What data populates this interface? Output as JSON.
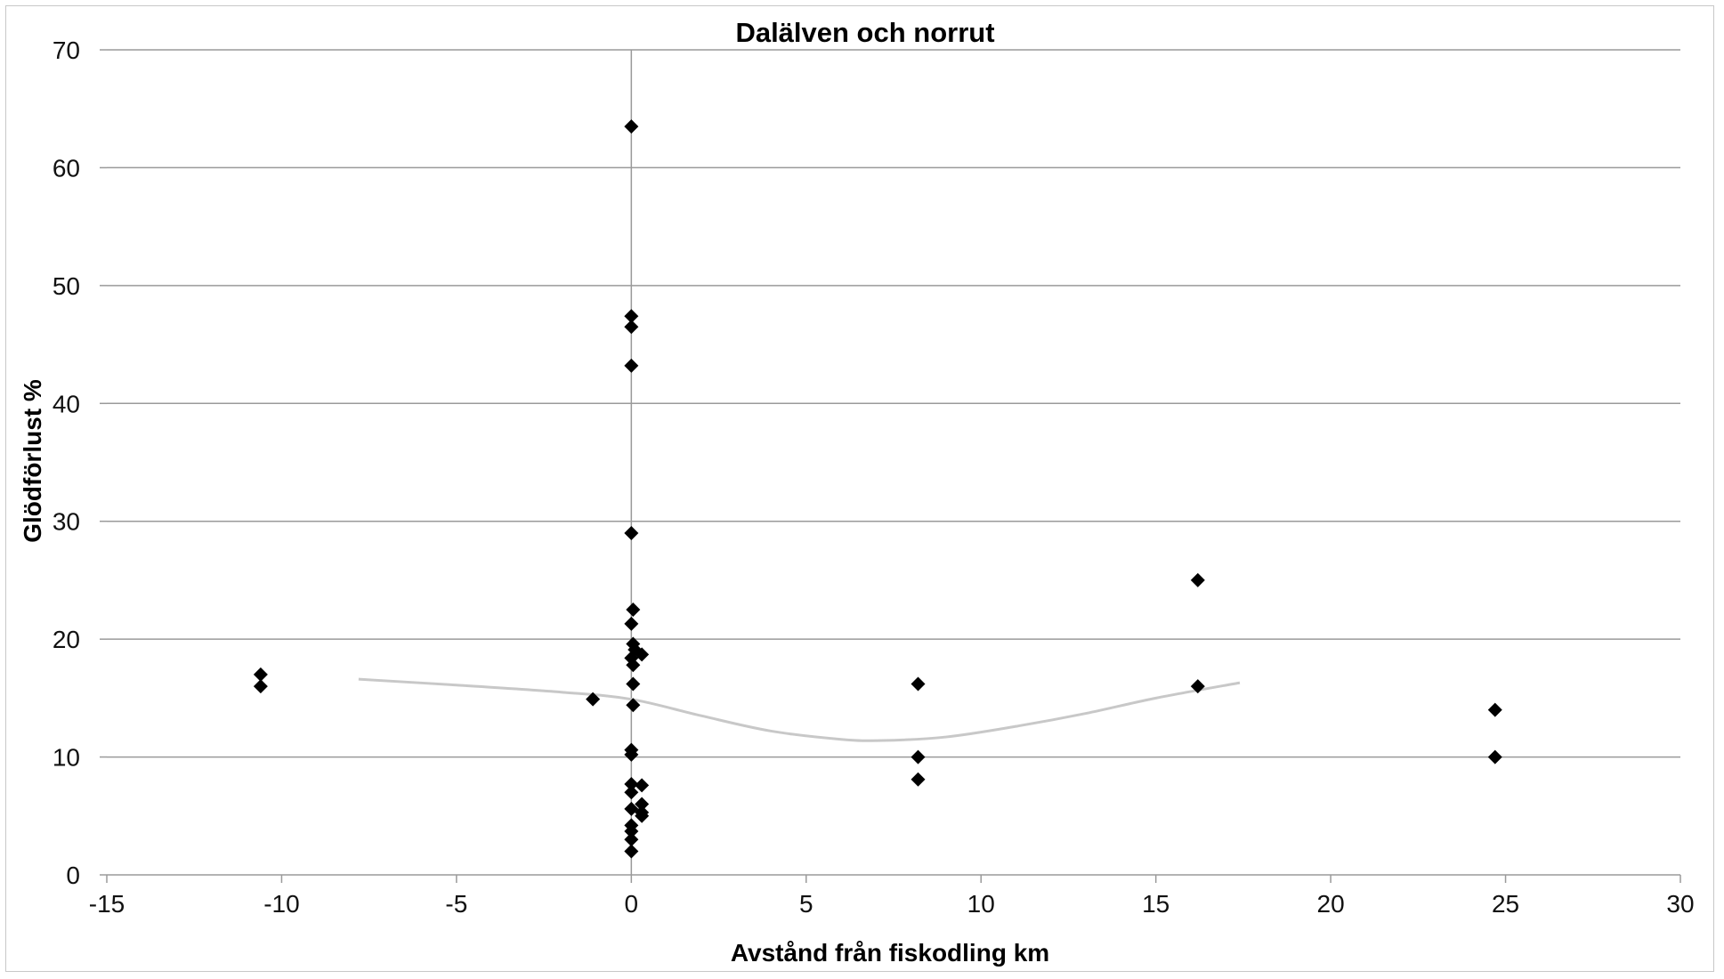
{
  "chart_data": {
    "type": "scatter",
    "title": "Dalälven och norrut",
    "xlabel": "Avstånd från fiskodling km",
    "ylabel": "Glödförlust %",
    "xlim": [
      -15,
      30
    ],
    "ylim": [
      0,
      70
    ],
    "xticks": [
      -15,
      -10,
      -5,
      0,
      5,
      10,
      15,
      20,
      25,
      30
    ],
    "yticks": [
      0,
      10,
      20,
      30,
      40,
      50,
      60,
      70
    ],
    "grid": "horizontal",
    "marker": "diamond",
    "colors": {
      "points": "#000000",
      "trend": "#c8c8c8",
      "grid": "#9a9a9a",
      "axis": "#9a9a9a"
    },
    "points": [
      {
        "x": -10.6,
        "y": 17.0
      },
      {
        "x": -10.6,
        "y": 16.0
      },
      {
        "x": -1.1,
        "y": 14.9
      },
      {
        "x": 0,
        "y": 63.5
      },
      {
        "x": 0,
        "y": 47.4
      },
      {
        "x": 0,
        "y": 46.5
      },
      {
        "x": 0,
        "y": 43.2
      },
      {
        "x": 0,
        "y": 29.0
      },
      {
        "x": 0.05,
        "y": 22.5
      },
      {
        "x": 0,
        "y": 21.3
      },
      {
        "x": 0.05,
        "y": 19.6
      },
      {
        "x": 0.1,
        "y": 19.1
      },
      {
        "x": 0,
        "y": 18.4
      },
      {
        "x": 0.3,
        "y": 18.7
      },
      {
        "x": 0.05,
        "y": 17.8
      },
      {
        "x": 0.05,
        "y": 16.2
      },
      {
        "x": 0.05,
        "y": 14.4
      },
      {
        "x": 0,
        "y": 10.6
      },
      {
        "x": 0,
        "y": 10.2
      },
      {
        "x": 0,
        "y": 7.7
      },
      {
        "x": 0.3,
        "y": 7.6
      },
      {
        "x": 0,
        "y": 7.0
      },
      {
        "x": 0.3,
        "y": 6.0
      },
      {
        "x": 0,
        "y": 5.6
      },
      {
        "x": 0.3,
        "y": 5.3
      },
      {
        "x": 0.3,
        "y": 5.0
      },
      {
        "x": 0,
        "y": 4.2
      },
      {
        "x": 0,
        "y": 3.7
      },
      {
        "x": 0,
        "y": 3.0
      },
      {
        "x": 0,
        "y": 2.0
      },
      {
        "x": 8.2,
        "y": 16.2
      },
      {
        "x": 8.2,
        "y": 10.0
      },
      {
        "x": 8.2,
        "y": 8.1
      },
      {
        "x": 16.2,
        "y": 25.0
      },
      {
        "x": 16.2,
        "y": 16.0
      },
      {
        "x": 24.7,
        "y": 14.0
      },
      {
        "x": 24.7,
        "y": 10.0
      }
    ],
    "trendline": [
      {
        "x": -7.8,
        "y": 16.6
      },
      {
        "x": -5,
        "y": 16.1
      },
      {
        "x": -2,
        "y": 15.5
      },
      {
        "x": 0,
        "y": 14.9
      },
      {
        "x": 2,
        "y": 13.5
      },
      {
        "x": 4,
        "y": 12.2
      },
      {
        "x": 6,
        "y": 11.5
      },
      {
        "x": 7.2,
        "y": 11.4
      },
      {
        "x": 9,
        "y": 11.7
      },
      {
        "x": 11,
        "y": 12.6
      },
      {
        "x": 13,
        "y": 13.7
      },
      {
        "x": 15,
        "y": 15.0
      },
      {
        "x": 17.4,
        "y": 16.3
      }
    ]
  }
}
